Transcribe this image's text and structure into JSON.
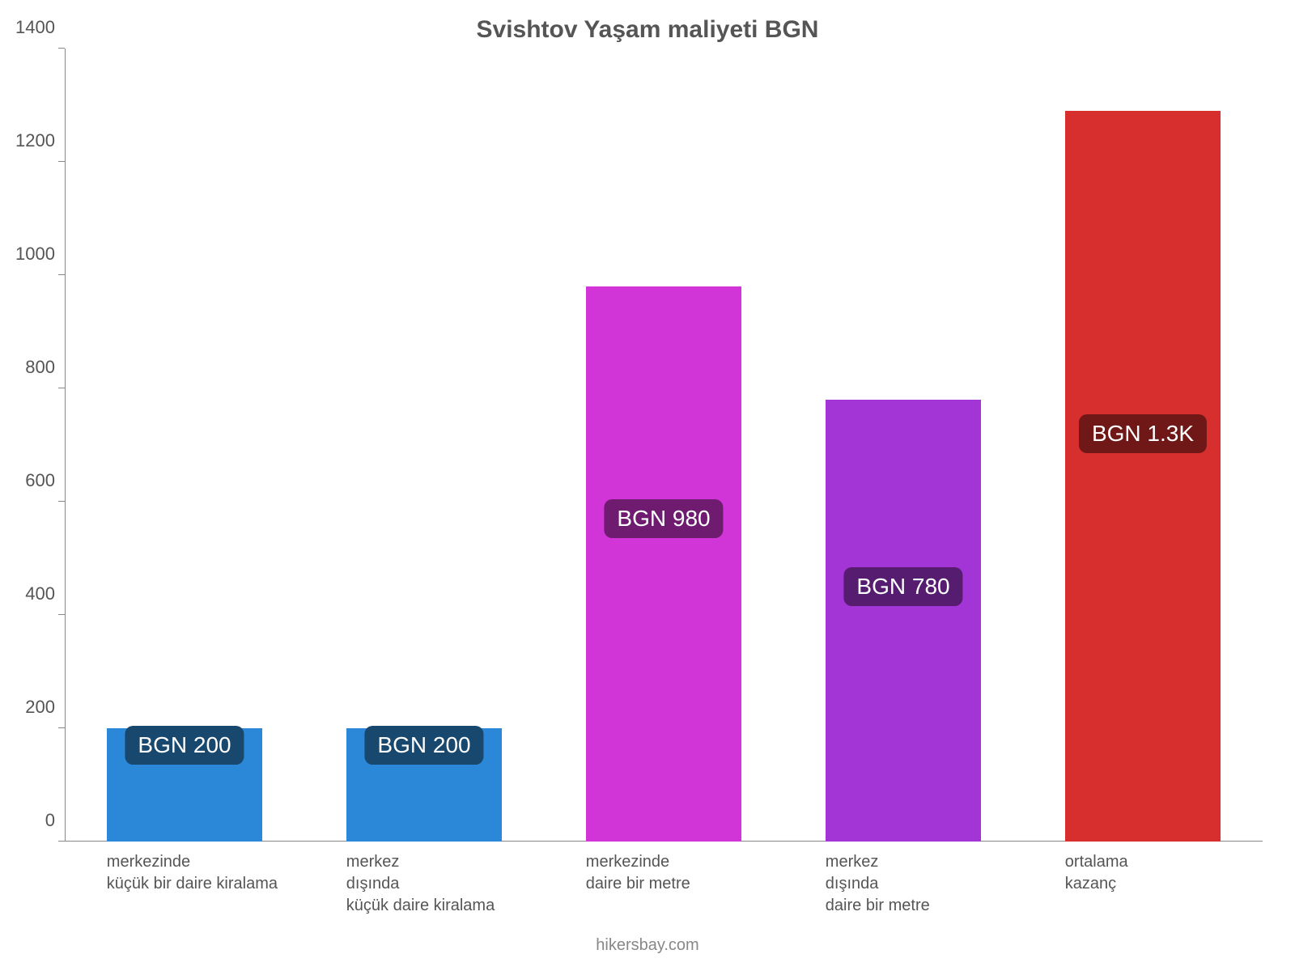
{
  "chart": {
    "type": "bar",
    "title": "Svishtov Yaşam maliyeti BGN",
    "title_fontsize": 30,
    "title_color": "#555555",
    "background_color": "#ffffff",
    "axis_color": "#888888",
    "tick_label_color": "#555555",
    "tick_label_fontsize": 22,
    "xtick_label_fontsize": 20,
    "ylim": [
      0,
      1400
    ],
    "ytick_step": 200,
    "yticks": [
      {
        "value": 0,
        "label": "0"
      },
      {
        "value": 200,
        "label": "200"
      },
      {
        "value": 400,
        "label": "400"
      },
      {
        "value": 600,
        "label": "600"
      },
      {
        "value": 800,
        "label": "800"
      },
      {
        "value": 1000,
        "label": "1000"
      },
      {
        "value": 1200,
        "label": "1200"
      },
      {
        "value": 1400,
        "label": "1400"
      }
    ],
    "bar_width_pct": 13,
    "bars": [
      {
        "category": "merkezinde\nküçük bir daire kiralama",
        "value": 200,
        "value_label": "BGN 200",
        "bar_color": "#2b87d8",
        "badge_bg": "#18486e",
        "badge_at_value": 170,
        "center_pct": 10
      },
      {
        "category": "merkez\ndışında\nküçük daire kiralama",
        "value": 200,
        "value_label": "BGN 200",
        "bar_color": "#2b87d8",
        "badge_bg": "#18486e",
        "badge_at_value": 170,
        "center_pct": 30
      },
      {
        "category": "merkezinde\ndaire bir metre",
        "value": 980,
        "value_label": "BGN 980",
        "bar_color": "#d235d7",
        "badge_bg": "#6e1b70",
        "badge_at_value": 570,
        "center_pct": 50
      },
      {
        "category": "merkez\ndışında\ndaire bir metre",
        "value": 780,
        "value_label": "BGN 780",
        "bar_color": "#a335d7",
        "badge_bg": "#551c70",
        "badge_at_value": 450,
        "center_pct": 70
      },
      {
        "category": "ortalama\nkazanç",
        "value": 1290,
        "value_label": "BGN 1.3K",
        "bar_color": "#d72e2e",
        "badge_bg": "#701818",
        "badge_at_value": 720,
        "center_pct": 90
      }
    ],
    "footer": "hikersbay.com",
    "footer_color": "#888888",
    "footer_fontsize": 20
  }
}
